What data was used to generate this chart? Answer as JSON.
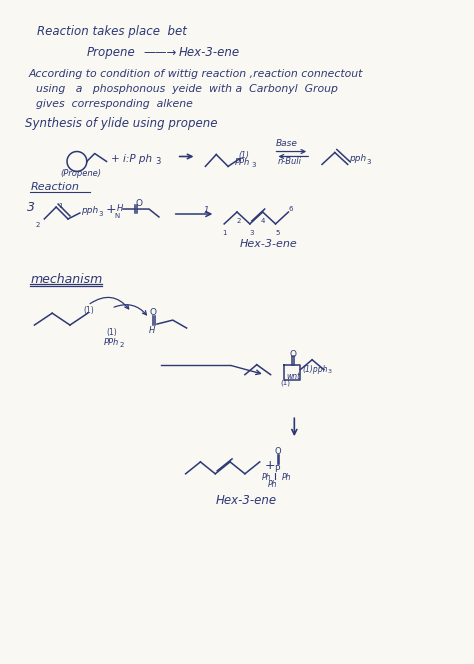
{
  "bg_color": "#faf8f2",
  "text_color": "#2d3875",
  "ink_color": "#2d3875",
  "title_line": "Reaction takes place  bet",
  "subtitle_left": "Propene",
  "subtitle_arrow": "——→",
  "subtitle_right": "Hex-3-ene",
  "para1": "According to condition of wittig reaction ,reaction connectout",
  "para2": "using   a   phosphonous  yeide  with a  Carbonyl  Group",
  "para3": "gives  corresponding  alkene",
  "synth_header": "Synthesis of ylide using propene",
  "reaction_label": "Reaction",
  "mechanism_label": "mechanism",
  "hex3ene_label1": "Hex-3-ene",
  "hex3ene_label2": "Hex-3-ene"
}
